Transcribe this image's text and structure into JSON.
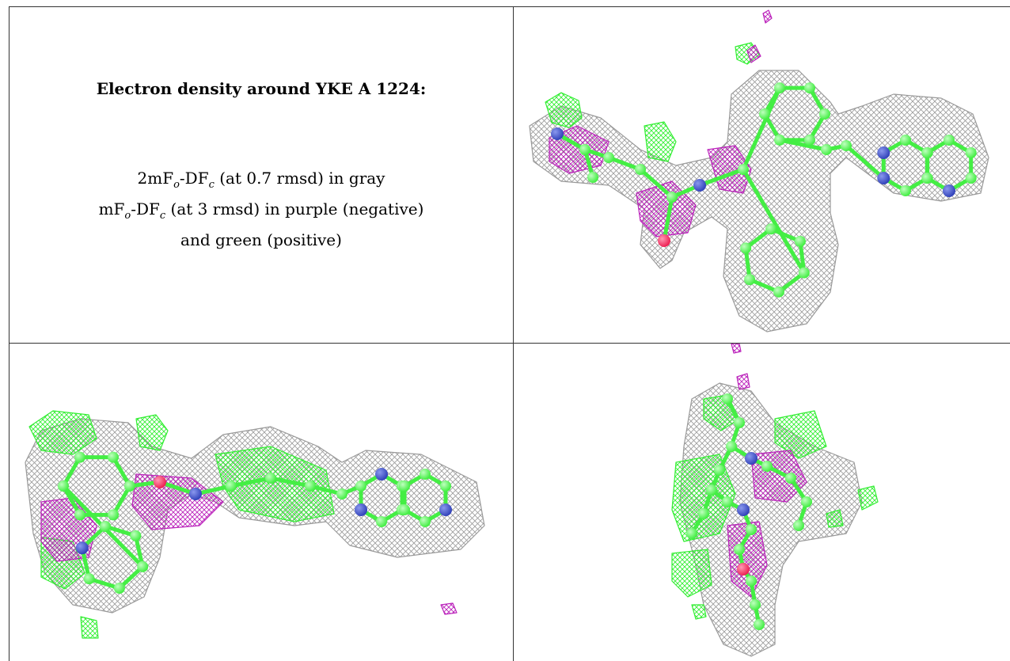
{
  "caption": {
    "title": "Electron density around YKE A 1224:",
    "line1_prefix": "2mF",
    "line1_sub1": "o",
    "line1_mid": "-DF",
    "line1_sub2": "c",
    "line1_suffix": " (at 0.7 rmsd) in gray",
    "line2_prefix": "mF",
    "line2_sub1": "o",
    "line2_mid": "-DF",
    "line2_sub2": "c",
    "line2_suffix": " (at 3 rmsd) in purple (negative)",
    "line3": "and green (positive)"
  },
  "colors": {
    "mesh_2fofc": "#9a9a9a",
    "positive": "#33ee33",
    "negative": "#bb22bb",
    "carbon": "#44ee44",
    "nitrogen": "#3344bb",
    "oxygen": "#ee2255",
    "grid": "#333333"
  },
  "panels": [
    {
      "view": "top-right"
    },
    {
      "view": "bottom-left"
    },
    {
      "view": "bottom-right"
    }
  ]
}
